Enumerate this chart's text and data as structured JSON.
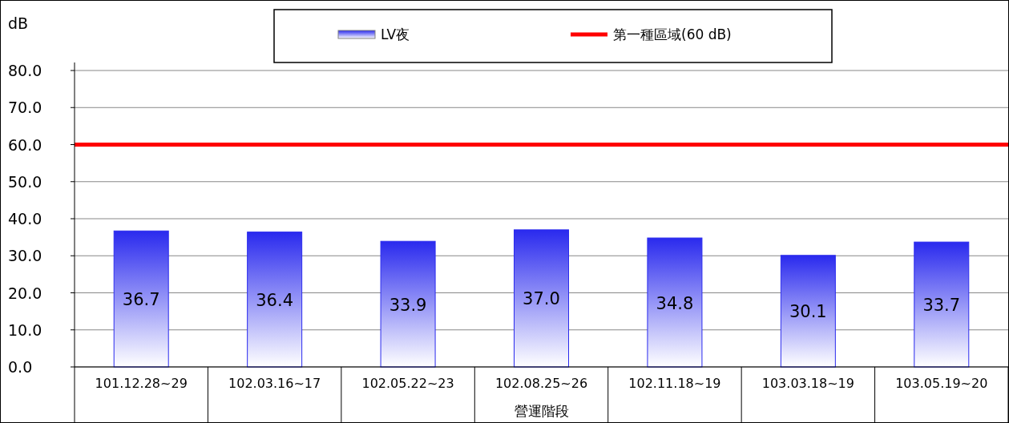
{
  "chart_data": {
    "type": "bar",
    "ylabel": "dB",
    "xlabel": "營運階段",
    "categories": [
      "101.12.28~29",
      "102.03.16~17",
      "102.05.22~23",
      "102.08.25~26",
      "102.11.18~19",
      "103.03.18~19",
      "103.05.19~20"
    ],
    "series": [
      {
        "name": "LV夜",
        "color": "#2a2aee",
        "values": [
          36.7,
          36.4,
          33.9,
          37.0,
          34.8,
          30.1,
          33.7
        ],
        "value_labels": [
          "36.7",
          "36.4",
          "33.9",
          "37.0",
          "34.8",
          "30.1",
          "33.7"
        ]
      }
    ],
    "ylim": [
      0,
      80
    ],
    "yticks": [
      {
        "value": 0,
        "label": "0.0"
      },
      {
        "value": 10,
        "label": "10.0"
      },
      {
        "value": 20,
        "label": "20.0"
      },
      {
        "value": 30,
        "label": "30.0"
      },
      {
        "value": 40,
        "label": "40.0"
      },
      {
        "value": 50,
        "label": "50.0"
      },
      {
        "value": 60,
        "label": "60.0"
      },
      {
        "value": 70,
        "label": "70.0"
      },
      {
        "value": 80,
        "label": "80.0"
      }
    ],
    "ref_lines": [
      {
        "axis": "y",
        "value": 60,
        "label": "第一種區域(60 dB)",
        "color": "#ff0000"
      }
    ],
    "grid": "y",
    "legend": "top"
  }
}
